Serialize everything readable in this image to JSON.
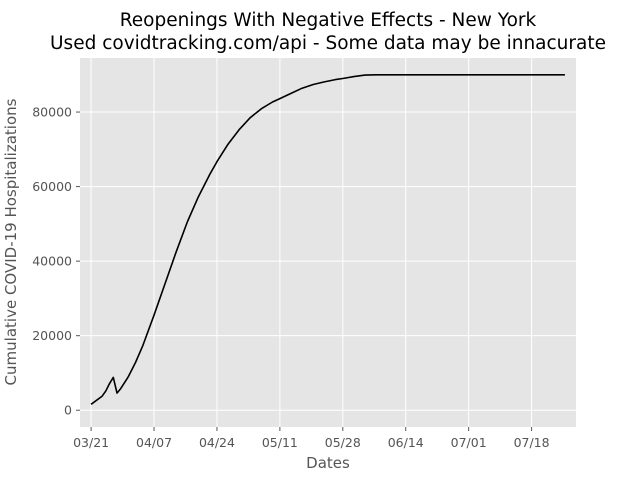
{
  "chart_data": {
    "type": "line",
    "title": "Reopenings With Negative Effects - New York",
    "subtitle": "Used covidtracking.com/api - Some data may be innacurate",
    "xlabel": "Dates",
    "ylabel": "Cumulative COVID-19 Hospitalizations",
    "x_tick_labels": [
      "03/21",
      "04/07",
      "04/24",
      "05/11",
      "05/28",
      "06/14",
      "07/01",
      "07/18"
    ],
    "y_tick_labels": [
      "0",
      "20000",
      "40000",
      "60000",
      "80000"
    ],
    "y_ticks": [
      0,
      20000,
      40000,
      60000,
      80000
    ],
    "xlim": [
      "2020-03-18",
      "2020-07-30"
    ],
    "ylim": [
      -4500,
      94500
    ],
    "grid": true,
    "colors": {
      "background": "#e5e5e5",
      "grid": "#ffffff",
      "line": "#000000",
      "tick": "#555555"
    },
    "series": [
      {
        "x": [
          "2020-03-21",
          "2020-03-24",
          "2020-03-25",
          "2020-03-26",
          "2020-03-27",
          "2020-03-28",
          "2020-03-29",
          "2020-03-31",
          "2020-04-02",
          "2020-04-04",
          "2020-04-07",
          "2020-04-10",
          "2020-04-13",
          "2020-04-16",
          "2020-04-19",
          "2020-04-22",
          "2020-04-24",
          "2020-04-27",
          "2020-04-30",
          "2020-05-03",
          "2020-05-06",
          "2020-05-09",
          "2020-05-11",
          "2020-05-14",
          "2020-05-17",
          "2020-05-20",
          "2020-05-23",
          "2020-05-26",
          "2020-05-28",
          "2020-05-31",
          "2020-06-03",
          "2020-06-06",
          "2020-06-08",
          "2020-06-14",
          "2020-06-20",
          "2020-06-26",
          "2020-07-01",
          "2020-07-06",
          "2020-07-12",
          "2020-07-18",
          "2020-07-24",
          "2020-07-27"
        ],
        "values": [
          1600,
          3800,
          5200,
          7200,
          8800,
          4600,
          5800,
          8900,
          12800,
          17400,
          25500,
          34000,
          42500,
          50500,
          57300,
          63200,
          66700,
          71400,
          75300,
          78500,
          80900,
          82700,
          83600,
          85000,
          86400,
          87400,
          88100,
          88700,
          89000,
          89500,
          89900,
          90000,
          90000,
          90000,
          90000,
          90000,
          90000,
          90000,
          90000,
          90000,
          90000,
          90000
        ]
      }
    ]
  }
}
